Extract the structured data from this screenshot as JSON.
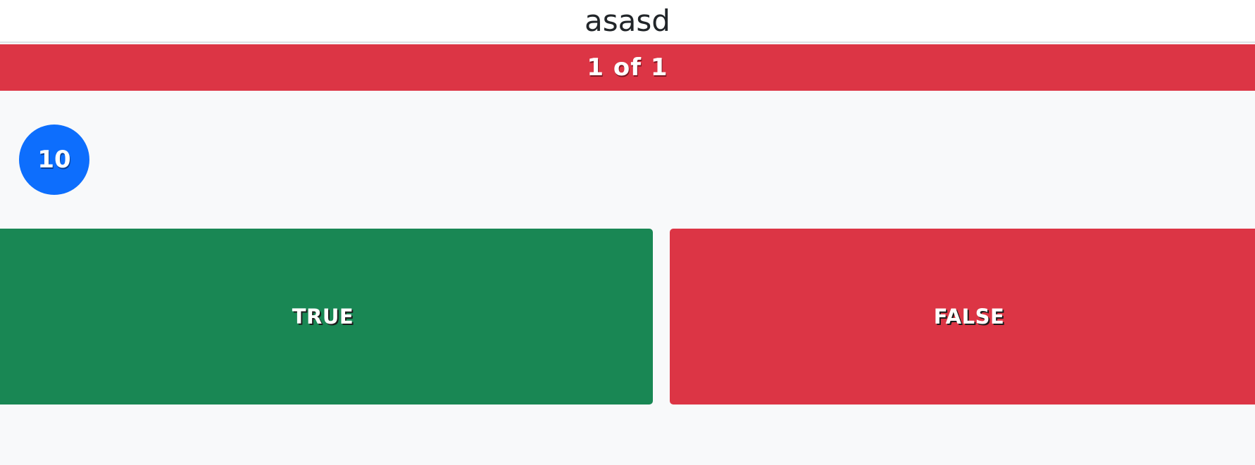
{
  "question": {
    "value": "asasd"
  },
  "progress": {
    "text": "1 of 1"
  },
  "timer": {
    "value": "10"
  },
  "answers": [
    {
      "label": "TRUE",
      "color": "#198754"
    },
    {
      "label": "FALSE",
      "color": "#dc3545"
    }
  ],
  "colors": {
    "banner": "#dc3545",
    "timer": "#0d6efd",
    "true": "#198754",
    "false": "#dc3545",
    "background": "#f8f9fa"
  }
}
